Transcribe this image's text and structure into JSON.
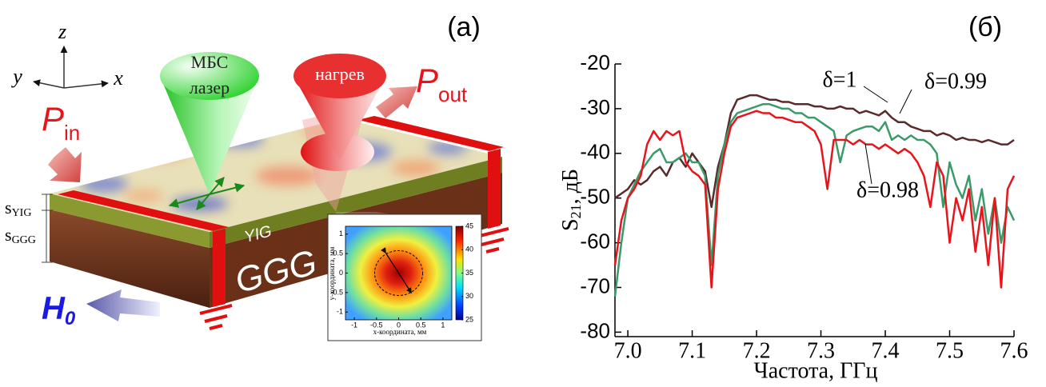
{
  "panel_a": {
    "label": "(a)",
    "axes": {
      "z": "z",
      "y": "y",
      "x": "x"
    },
    "p_in": [
      "P",
      "in"
    ],
    "p_out": [
      "P",
      "out"
    ],
    "laser": [
      "МБС",
      "лазер"
    ],
    "heating": "нагрев",
    "s_yig": [
      "s",
      "YIG"
    ],
    "s_ggg": [
      "s",
      "GGG"
    ],
    "yig": "YIG",
    "ggg": "GGG",
    "h0": [
      "H",
      "0"
    ]
  },
  "chart_data": [
    {
      "type": "line",
      "title": "(б)",
      "x_label": "Частота, ГГц",
      "y_label": [
        "S",
        "21",
        ", дБ"
      ],
      "x": [
        6.98,
        6.99,
        7.0,
        7.01,
        7.02,
        7.03,
        7.04,
        7.05,
        7.06,
        7.07,
        7.08,
        7.09,
        7.1,
        7.11,
        7.12,
        7.13,
        7.14,
        7.15,
        7.16,
        7.17,
        7.18,
        7.19,
        7.2,
        7.21,
        7.22,
        7.23,
        7.24,
        7.25,
        7.26,
        7.27,
        7.28,
        7.29,
        7.3,
        7.31,
        7.32,
        7.33,
        7.34,
        7.35,
        7.36,
        7.37,
        7.38,
        7.39,
        7.4,
        7.41,
        7.42,
        7.43,
        7.44,
        7.45,
        7.46,
        7.47,
        7.48,
        7.49,
        7.5,
        7.51,
        7.52,
        7.53,
        7.54,
        7.55,
        7.56,
        7.57,
        7.58,
        7.59,
        7.6
      ],
      "series": [
        {
          "name": "δ=1",
          "color": "#5a2a2a",
          "values": [
            -50,
            -49,
            -48,
            -46,
            -47,
            -46,
            -44,
            -43,
            -45,
            -42,
            -41,
            -43,
            -40,
            -42,
            -44,
            -52,
            -43,
            -38,
            -31,
            -28,
            -27.5,
            -27,
            -27,
            -27.5,
            -28,
            -28,
            -28.5,
            -28.5,
            -29,
            -29,
            -29,
            -29.5,
            -29.5,
            -30,
            -30,
            -29.5,
            -30,
            -30,
            -31,
            -30.5,
            -31,
            -31.5,
            -30.5,
            -32,
            -33,
            -33,
            -34,
            -34.5,
            -35,
            -35,
            -36,
            -35.5,
            -36,
            -37,
            -36.5,
            -37,
            -37,
            -37.5,
            -37,
            -37.5,
            -38,
            -38,
            -37
          ]
        },
        {
          "name": "δ=0.99",
          "color": "#3a9a6a",
          "values": [
            -72,
            -60,
            -50,
            -47,
            -44,
            -42,
            -40,
            -39,
            -42,
            -42,
            -41,
            -40,
            -42,
            -42,
            -45,
            -65,
            -45,
            -38,
            -33,
            -31,
            -30.5,
            -30,
            -29.5,
            -29,
            -29,
            -29.5,
            -30,
            -30,
            -31,
            -31,
            -32,
            -32,
            -33,
            -34,
            -35,
            -42,
            -36,
            -35,
            -34.5,
            -34,
            -34,
            -35,
            -33,
            -37,
            -36,
            -37,
            -36,
            -37,
            -37,
            -38,
            -40,
            -52,
            -42,
            -47,
            -50,
            -45,
            -55,
            -48,
            -58,
            -50,
            -60,
            -52,
            -55
          ]
        },
        {
          "name": "δ=0.98",
          "color": "#e8141c",
          "values": [
            -65,
            -55,
            -50,
            -48,
            -45,
            -38,
            -35,
            -37,
            -35,
            -36,
            -35,
            -42,
            -44,
            -45,
            -47,
            -70,
            -48,
            -40,
            -34,
            -32,
            -31.5,
            -31,
            -30.5,
            -31,
            -31,
            -32,
            -32,
            -32.5,
            -33,
            -33,
            -34,
            -35,
            -38,
            -48,
            -37,
            -37,
            -37,
            -38,
            -37,
            -38,
            -38,
            -39,
            -38,
            -39,
            -40,
            -39,
            -40,
            -42,
            -45,
            -52,
            -42,
            -45,
            -60,
            -50,
            -55,
            -48,
            -62,
            -52,
            -65,
            -50,
            -70,
            -48,
            -45
          ]
        }
      ],
      "xlim": [
        6.98,
        7.6
      ],
      "xticks": [
        {
          "value": 7,
          "label": "7.0"
        },
        7.1,
        7.2,
        7.3,
        7.4,
        7.5,
        7.6
      ],
      "ylim": [
        -81,
        -20
      ],
      "yticks": [
        -20,
        -30,
        -40,
        -50,
        -60,
        -70,
        -80
      ]
    },
    {
      "type": "heatmap",
      "x_label": "x-координата, мм",
      "y_label": "y-координата, мм",
      "xlim": [
        -1.2,
        1.2
      ],
      "xticks": [
        -1,
        -0.5,
        0,
        0.5,
        1
      ],
      "ylim": [
        -1.2,
        1.2
      ],
      "yticks": [
        1,
        0.5,
        0,
        -0.5,
        -1
      ],
      "clim": [
        25,
        45
      ],
      "cticks": [
        45,
        40,
        35,
        30,
        25
      ]
    }
  ]
}
